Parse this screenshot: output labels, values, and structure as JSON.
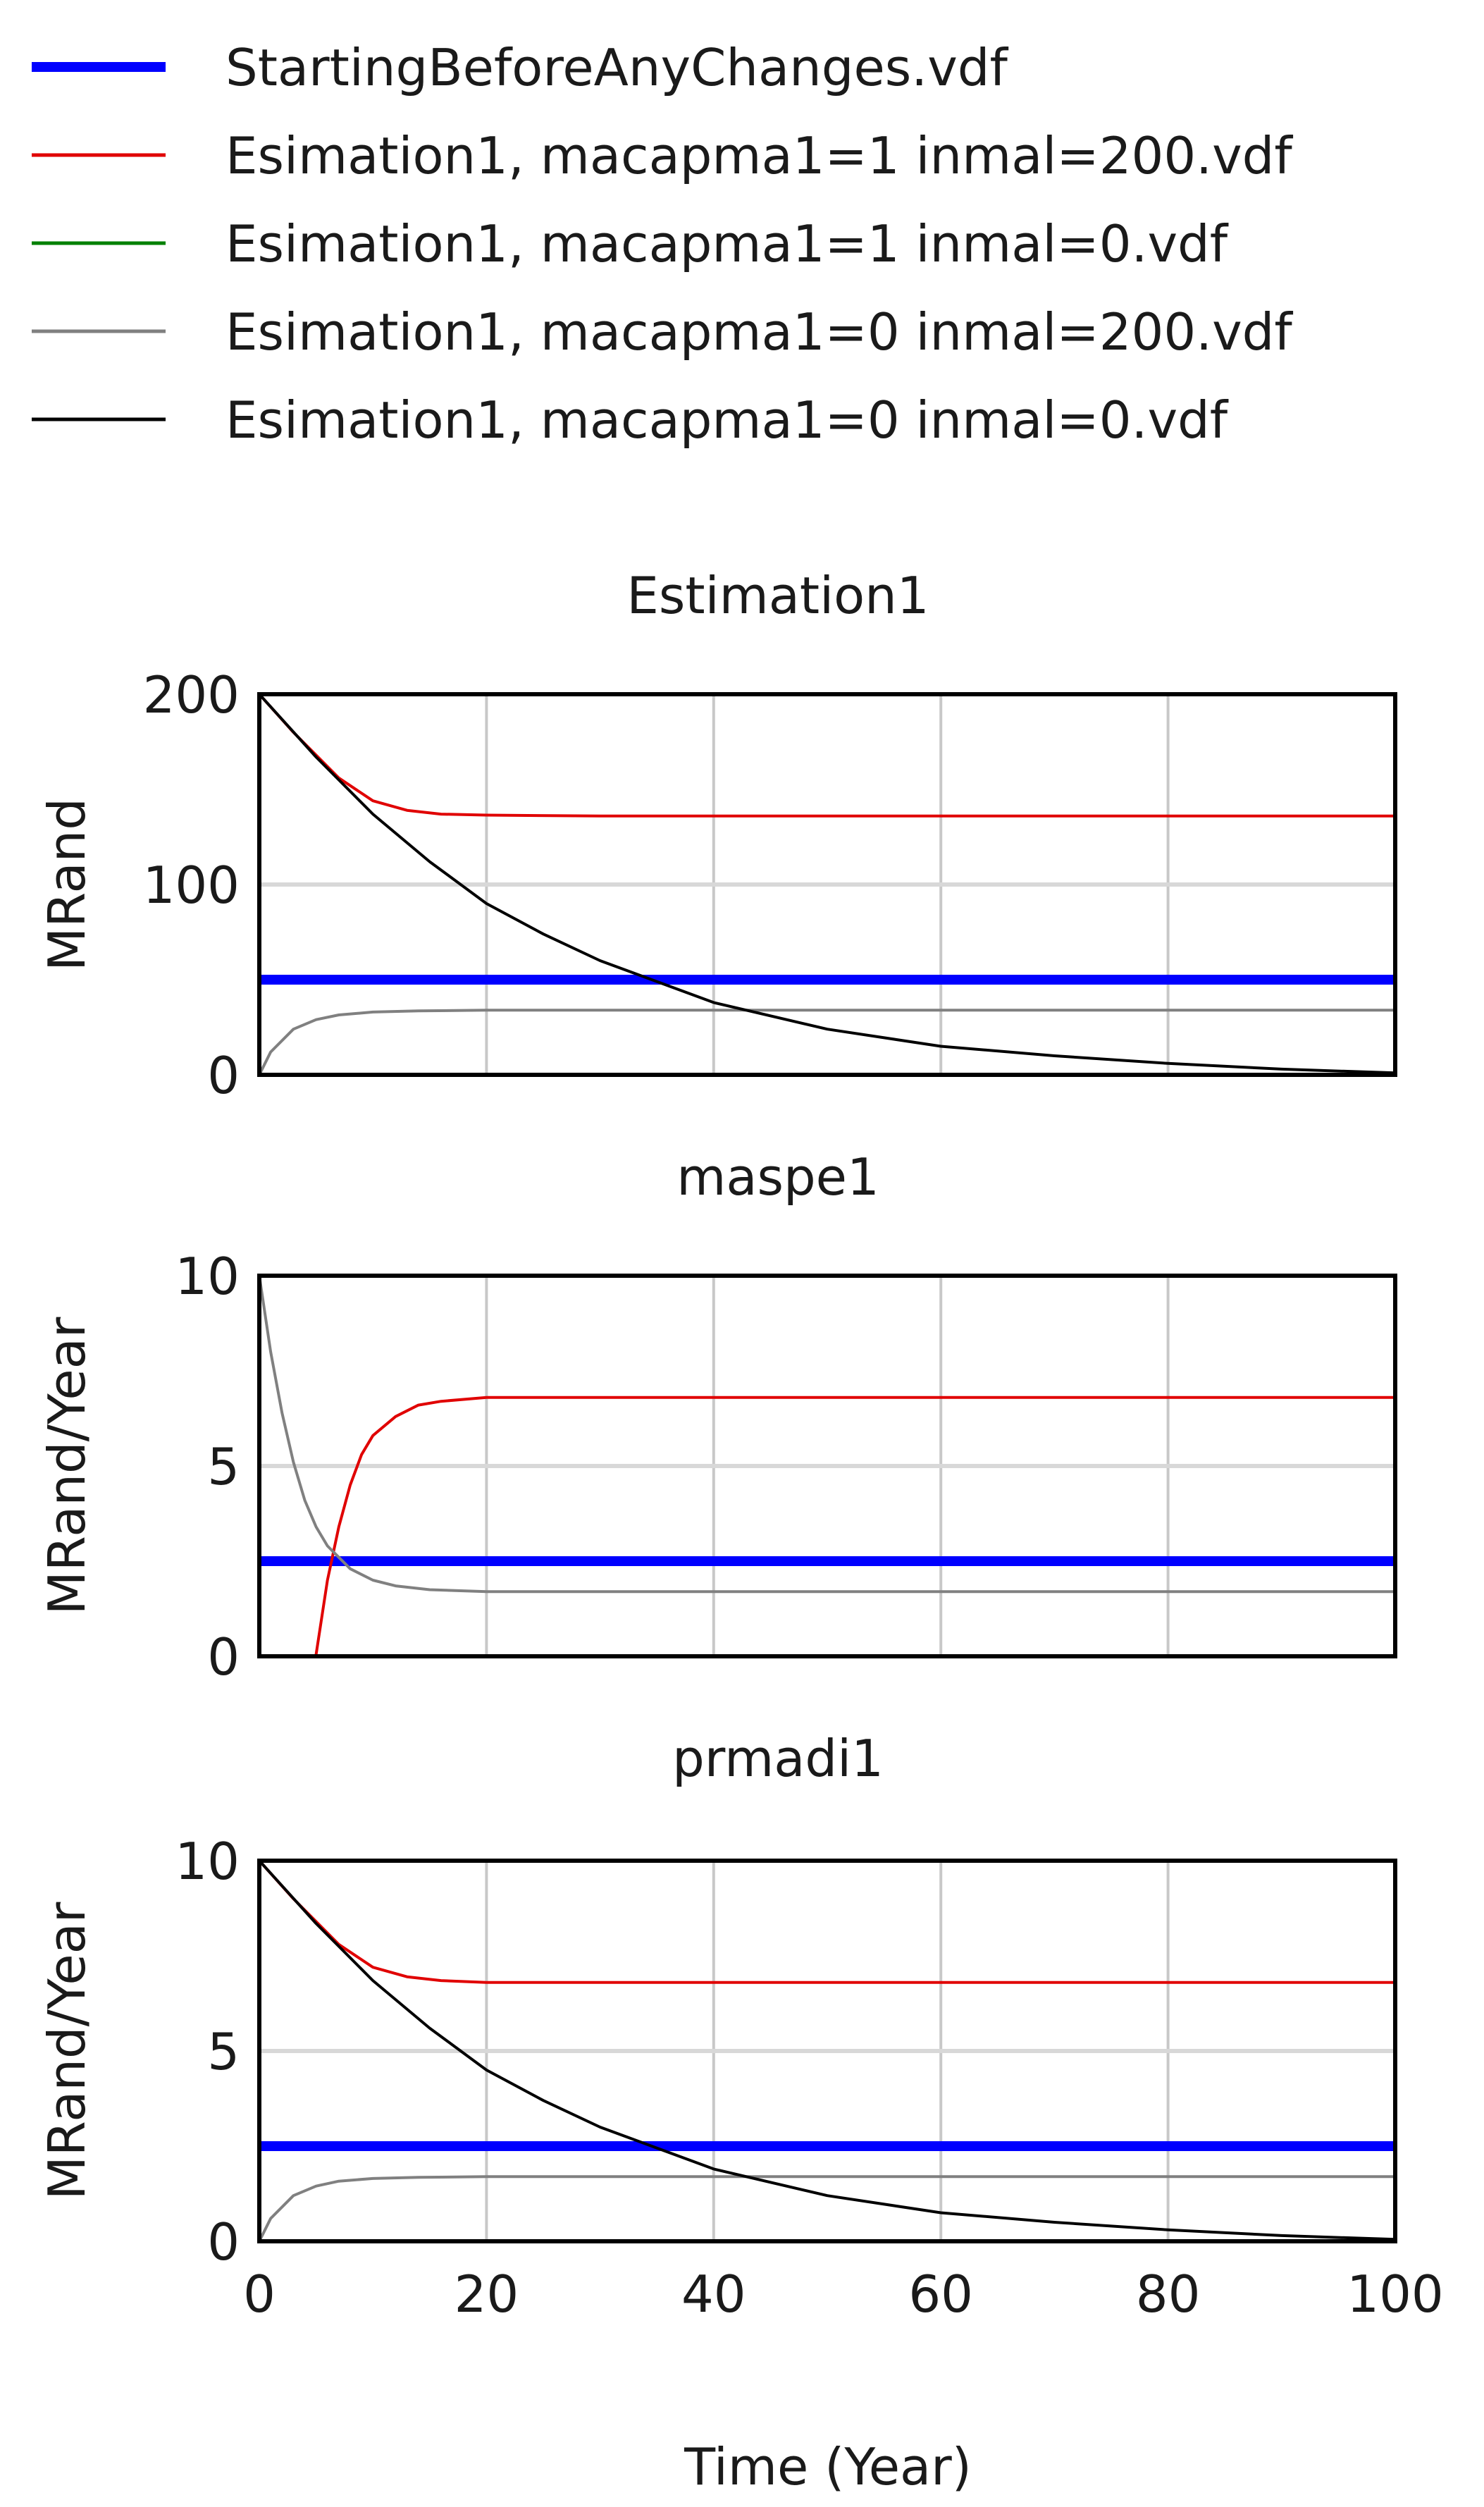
{
  "legend": [
    {
      "label": "StartingBeforeAnyChanges.vdf",
      "color": "#0000ff",
      "weight": "thick"
    },
    {
      "label": "Esimation1, macapma1=1 inmal=200.vdf",
      "color": "#e00000",
      "weight": "thin"
    },
    {
      "label": "Esimation1, macapma1=1 inmal=0.vdf",
      "color": "#008000",
      "weight": "thin"
    },
    {
      "label": "Esimation1, macapma1=0 inmal=200.vdf",
      "color": "#808080",
      "weight": "thin"
    },
    {
      "label": "Esimation1, macapma1=0 inmal=0.vdf",
      "color": "#000000",
      "weight": "thin"
    }
  ],
  "xlabel": "Time (Year)",
  "chart_data": [
    {
      "type": "line",
      "title": "Estimation1",
      "ylabel": "MRand",
      "xlim": [
        0,
        100
      ],
      "ylim": [
        0,
        200
      ],
      "xticks": [
        0,
        20,
        40,
        60,
        80,
        100
      ],
      "yticks": [
        0,
        100,
        200
      ],
      "ytick_labels": [
        "0",
        "100",
        "200"
      ],
      "series": [
        {
          "name": "StartingBeforeAnyChanges.vdf",
          "color": "#0000ff",
          "x": [
            0,
            100
          ],
          "y": [
            50,
            50
          ]
        },
        {
          "name": "Esimation1, macapma1=1 inmal=200.vdf",
          "color": "#e00000",
          "x": [
            0,
            3,
            5,
            7,
            10,
            13,
            16,
            20,
            30,
            50,
            100
          ],
          "y": [
            200,
            180,
            168,
            156,
            144,
            139,
            137,
            136.5,
            136,
            136,
            136
          ]
        },
        {
          "name": "Esimation1, macapma1=0 inmal=200.vdf",
          "color": "#808080",
          "x": [
            0,
            1,
            3,
            5,
            7,
            10,
            14,
            20,
            40,
            100
          ],
          "y": [
            0,
            12,
            24,
            29,
            31.5,
            33,
            33.6,
            34,
            34,
            34
          ]
        },
        {
          "name": "Esimation1, macapma1=0 inmal=0.vdf",
          "color": "#000000",
          "x": [
            0,
            5,
            10,
            15,
            20,
            25,
            30,
            40,
            50,
            60,
            70,
            80,
            90,
            100
          ],
          "y": [
            200,
            167,
            137,
            112,
            90,
            74,
            60,
            38,
            24,
            15,
            10,
            6,
            3,
            1
          ]
        }
      ]
    },
    {
      "type": "line",
      "title": "maspe1",
      "ylabel": "MRand/Year",
      "xlim": [
        0,
        100
      ],
      "ylim": [
        0,
        10
      ],
      "xticks": [
        0,
        20,
        40,
        60,
        80,
        100
      ],
      "yticks": [
        0,
        5,
        10
      ],
      "ytick_labels": [
        "0",
        "5",
        "10"
      ],
      "series": [
        {
          "name": "StartingBeforeAnyChanges.vdf",
          "color": "#0000ff",
          "x": [
            0,
            100
          ],
          "y": [
            2.5,
            2.5
          ]
        },
        {
          "name": "Esimation1, macapma1=1 inmal=200.vdf",
          "color": "#e00000",
          "x": [
            0,
            4.9,
            5,
            6,
            7,
            8,
            9,
            10,
            12,
            14,
            16,
            20,
            30,
            100
          ],
          "y": [
            0,
            0,
            0.05,
            2.0,
            3.4,
            4.5,
            5.3,
            5.8,
            6.3,
            6.6,
            6.7,
            6.8,
            6.8,
            6.8
          ]
        },
        {
          "name": "Esimation1, macapma1=0 inmal=200.vdf",
          "color": "#808080",
          "x": [
            0,
            1,
            2,
            3,
            4,
            5,
            6,
            8,
            10,
            12,
            15,
            20,
            40,
            100
          ],
          "y": [
            10,
            8.0,
            6.4,
            5.1,
            4.1,
            3.4,
            2.9,
            2.3,
            2.0,
            1.85,
            1.75,
            1.7,
            1.7,
            1.7
          ]
        }
      ]
    },
    {
      "type": "line",
      "title": "prmadi1",
      "ylabel": "MRand/Year",
      "xlim": [
        0,
        100
      ],
      "ylim": [
        0,
        10
      ],
      "xticks": [
        0,
        20,
        40,
        60,
        80,
        100
      ],
      "xtick_labels": [
        "0",
        "20",
        "40",
        "60",
        "80",
        "100"
      ],
      "yticks": [
        0,
        5,
        10
      ],
      "ytick_labels": [
        "0",
        "5",
        "10"
      ],
      "series": [
        {
          "name": "StartingBeforeAnyChanges.vdf",
          "color": "#0000ff",
          "x": [
            0,
            100
          ],
          "y": [
            2.5,
            2.5
          ]
        },
        {
          "name": "Esimation1, macapma1=1 inmal=200.vdf",
          "color": "#e00000",
          "x": [
            0,
            3,
            5,
            7,
            10,
            13,
            16,
            20,
            30,
            50,
            100
          ],
          "y": [
            10,
            9.0,
            8.4,
            7.8,
            7.2,
            6.95,
            6.85,
            6.8,
            6.8,
            6.8,
            6.8
          ]
        },
        {
          "name": "Esimation1, macapma1=0 inmal=200.vdf",
          "color": "#808080",
          "x": [
            0,
            1,
            3,
            5,
            7,
            10,
            14,
            20,
            40,
            100
          ],
          "y": [
            0,
            0.6,
            1.2,
            1.45,
            1.58,
            1.65,
            1.68,
            1.7,
            1.7,
            1.7
          ]
        },
        {
          "name": "Esimation1, macapma1=0 inmal=0.vdf",
          "color": "#000000",
          "x": [
            0,
            5,
            10,
            15,
            20,
            25,
            30,
            40,
            50,
            60,
            70,
            80,
            90,
            100
          ],
          "y": [
            10,
            8.35,
            6.85,
            5.6,
            4.5,
            3.7,
            3.0,
            1.9,
            1.2,
            0.75,
            0.5,
            0.3,
            0.15,
            0.05
          ]
        }
      ]
    }
  ]
}
